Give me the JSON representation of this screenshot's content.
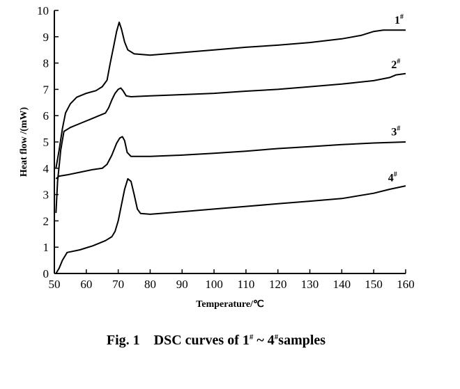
{
  "chart_data": {
    "type": "line",
    "xlabel": "Temperature/℃",
    "ylabel": "Heat flow  /(mW)",
    "xlim": [
      50,
      160
    ],
    "ylim": [
      0,
      10
    ],
    "xticks": [
      50,
      60,
      70,
      80,
      90,
      100,
      110,
      120,
      130,
      140,
      150,
      160
    ],
    "yticks": [
      0,
      1,
      2,
      3,
      4,
      5,
      6,
      7,
      8,
      9,
      10
    ],
    "grid": false,
    "legend": "none",
    "series": [
      {
        "name": "1#",
        "label_main": "1",
        "label_sup": "#",
        "label_at": [
          156.5,
          9.5
        ],
        "points": [
          [
            50.5,
            4.0
          ],
          [
            51.5,
            4.7
          ],
          [
            52.5,
            5.5
          ],
          [
            53.5,
            6.1
          ],
          [
            55,
            6.45
          ],
          [
            57,
            6.7
          ],
          [
            60,
            6.85
          ],
          [
            63,
            6.95
          ],
          [
            65,
            7.1
          ],
          [
            66.5,
            7.35
          ],
          [
            67.5,
            8.0
          ],
          [
            68.5,
            8.6
          ],
          [
            69.5,
            9.2
          ],
          [
            70.3,
            9.55
          ],
          [
            71,
            9.3
          ],
          [
            72,
            8.8
          ],
          [
            73,
            8.5
          ],
          [
            75,
            8.35
          ],
          [
            78,
            8.32
          ],
          [
            80,
            8.3
          ],
          [
            90,
            8.4
          ],
          [
            100,
            8.5
          ],
          [
            110,
            8.6
          ],
          [
            120,
            8.68
          ],
          [
            130,
            8.78
          ],
          [
            140,
            8.92
          ],
          [
            146,
            9.05
          ],
          [
            150,
            9.2
          ],
          [
            153,
            9.25
          ],
          [
            160,
            9.25
          ]
        ]
      },
      {
        "name": "2#",
        "label_main": "2",
        "label_sup": "#",
        "label_at": [
          155.5,
          7.8
        ],
        "points": [
          [
            50.5,
            2.3
          ],
          [
            51,
            3.5
          ],
          [
            52,
            4.7
          ],
          [
            53,
            5.4
          ],
          [
            55,
            5.55
          ],
          [
            58,
            5.7
          ],
          [
            61,
            5.85
          ],
          [
            64,
            6.0
          ],
          [
            66,
            6.1
          ],
          [
            67,
            6.3
          ],
          [
            68,
            6.6
          ],
          [
            69,
            6.85
          ],
          [
            70,
            7.0
          ],
          [
            70.8,
            7.05
          ],
          [
            71.5,
            6.95
          ],
          [
            72.5,
            6.75
          ],
          [
            74,
            6.72
          ],
          [
            80,
            6.75
          ],
          [
            90,
            6.8
          ],
          [
            100,
            6.85
          ],
          [
            110,
            6.93
          ],
          [
            120,
            7.0
          ],
          [
            130,
            7.1
          ],
          [
            140,
            7.2
          ],
          [
            150,
            7.33
          ],
          [
            155,
            7.45
          ],
          [
            157,
            7.55
          ],
          [
            160,
            7.6
          ]
        ]
      },
      {
        "name": "3#",
        "label_main": "3",
        "label_sup": "#",
        "label_at": [
          155.5,
          5.25
        ],
        "points": [
          [
            50.5,
            3.6
          ],
          [
            51.5,
            3.7
          ],
          [
            54,
            3.75
          ],
          [
            58,
            3.85
          ],
          [
            62,
            3.95
          ],
          [
            65,
            4.0
          ],
          [
            66.5,
            4.15
          ],
          [
            68,
            4.5
          ],
          [
            69.5,
            4.95
          ],
          [
            70.5,
            5.15
          ],
          [
            71.3,
            5.2
          ],
          [
            72,
            5.05
          ],
          [
            72.8,
            4.6
          ],
          [
            74,
            4.45
          ],
          [
            80,
            4.45
          ],
          [
            90,
            4.5
          ],
          [
            100,
            4.57
          ],
          [
            110,
            4.65
          ],
          [
            120,
            4.75
          ],
          [
            130,
            4.82
          ],
          [
            140,
            4.9
          ],
          [
            150,
            4.96
          ],
          [
            160,
            5.0
          ]
        ]
      },
      {
        "name": "4#",
        "label_main": "4",
        "label_sup": "#",
        "label_at": [
          154.5,
          3.5
        ],
        "points": [
          [
            50.5,
            0.0
          ],
          [
            51.5,
            0.2
          ],
          [
            52.5,
            0.5
          ],
          [
            54,
            0.8
          ],
          [
            58,
            0.9
          ],
          [
            62,
            1.05
          ],
          [
            66,
            1.25
          ],
          [
            68,
            1.4
          ],
          [
            69,
            1.6
          ],
          [
            70,
            2.0
          ],
          [
            71,
            2.6
          ],
          [
            72,
            3.2
          ],
          [
            73,
            3.6
          ],
          [
            74,
            3.5
          ],
          [
            75,
            3.0
          ],
          [
            76,
            2.45
          ],
          [
            77,
            2.28
          ],
          [
            80,
            2.25
          ],
          [
            90,
            2.35
          ],
          [
            100,
            2.45
          ],
          [
            110,
            2.55
          ],
          [
            120,
            2.65
          ],
          [
            130,
            2.75
          ],
          [
            140,
            2.85
          ],
          [
            150,
            3.05
          ],
          [
            155,
            3.2
          ],
          [
            160,
            3.33
          ]
        ]
      }
    ]
  },
  "caption": {
    "prefix": "Fig. 1",
    "text_a": "DSC curves of 1",
    "sup_a": "#",
    "text_b": " ~ 4",
    "sup_b": "#",
    "text_c": "samples"
  }
}
